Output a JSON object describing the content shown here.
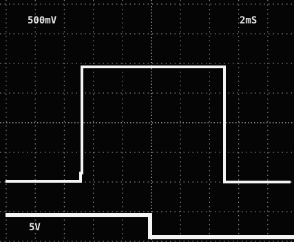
{
  "screen": {
    "channel_1_scale": "500mV",
    "timebase": "2mS",
    "channel_2_scale": "5V"
  }
}
